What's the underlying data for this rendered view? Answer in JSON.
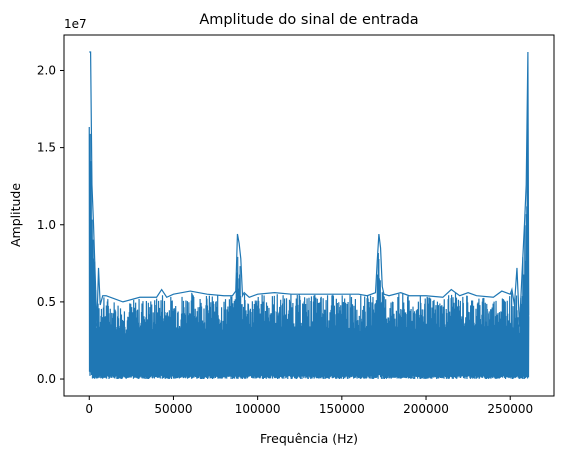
{
  "chart_data": {
    "type": "line",
    "title": "Amplitude do sinal de entrada",
    "xlabel": "Frequência (Hz)",
    "ylabel": "Amplitude",
    "y_offset_label": "1e7",
    "y_scale": 10000000,
    "xlim": [
      -15000,
      276000
    ],
    "ylim": [
      -1100000,
      22300000
    ],
    "x_ticks": [
      0,
      50000,
      100000,
      150000,
      200000,
      250000
    ],
    "x_tick_labels": [
      "0",
      "50000",
      "100000",
      "150000",
      "200000",
      "250000"
    ],
    "y_ticks": [
      0,
      5000000,
      10000000,
      15000000,
      20000000
    ],
    "y_tick_labels": [
      "0.0",
      "0.5",
      "1.0",
      "1.5",
      "2.0"
    ],
    "grid": false,
    "legend": "none",
    "series": [
      {
        "color": "#1f77b4",
        "envelope_x": [
          0,
          800,
          1600,
          2500,
          3500,
          4500,
          5500,
          6500,
          8000,
          10000,
          15000,
          20000,
          30000,
          40000,
          43000,
          46000,
          50000,
          60000,
          70000,
          80000,
          85000,
          87000,
          88000,
          89000,
          90000,
          91000,
          92000,
          95000,
          100000,
          110000,
          120000,
          130000,
          140000,
          150000,
          160000,
          165000,
          170000,
          171000,
          172000,
          173000,
          174000,
          175000,
          178000,
          185000,
          190000,
          200000,
          210000,
          215000,
          220000,
          225000,
          230000,
          240000,
          245000,
          250000,
          251000,
          252500,
          254000,
          255500,
          257000,
          258500,
          259500,
          260500,
          261000
        ],
        "envelope_max": [
          21200000,
          21200000,
          12600000,
          10100000,
          6800000,
          3400000,
          7200000,
          4800000,
          5400000,
          5400000,
          5200000,
          5000000,
          5300000,
          5300000,
          5800000,
          5300000,
          5500000,
          5700000,
          5500000,
          5400000,
          5400000,
          5700000,
          9400000,
          8800000,
          7800000,
          5400000,
          5600000,
          5300000,
          5500000,
          5600000,
          5500000,
          5500000,
          5500000,
          5500000,
          5500000,
          5400000,
          5600000,
          7600000,
          9400000,
          8500000,
          6000000,
          5500000,
          5400000,
          5600000,
          5400000,
          5400000,
          5300000,
          5800000,
          5400000,
          5600000,
          5400000,
          5300000,
          5700000,
          5500000,
          5800000,
          4800000,
          7200000,
          3400000,
          6800000,
          10100000,
          12600000,
          21200000,
          4100000
        ]
      }
    ]
  }
}
